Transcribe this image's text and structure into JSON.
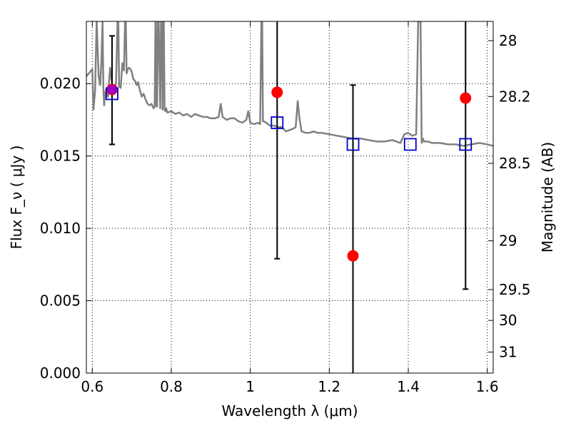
{
  "chart_data": {
    "type": "scatter",
    "xlabel": "Wavelength  λ (μm)",
    "ylabel": "Flux  F_ν  ( μJy )",
    "ylabel_right": "Magnitude (AB)",
    "xlim": [
      0.585,
      1.615
    ],
    "ylim": [
      0.0,
      0.0243
    ],
    "x_ticks": [
      0.6,
      0.8,
      1.0,
      1.2,
      1.4,
      1.6
    ],
    "x_tick_labels": [
      "0.6",
      "0.8",
      "1",
      "1.2",
      "1.4",
      "1.6"
    ],
    "y_ticks": [
      0.0,
      0.005,
      0.01,
      0.015,
      0.02
    ],
    "y_tick_labels": [
      "0.000",
      "0.005",
      "0.010",
      "0.015",
      "0.020"
    ],
    "right_ticks": [
      {
        "label": "28",
        "flux": 0.02297
      },
      {
        "label": "28.2",
        "flux": 0.01911
      },
      {
        "label": "28.5",
        "flux": 0.01449
      },
      {
        "label": "29",
        "flux": 0.00914
      },
      {
        "label": "29.5",
        "flux": 0.00577
      },
      {
        "label": "30",
        "flux": 0.00364
      },
      {
        "label": "31",
        "flux": 0.00145
      }
    ],
    "grid": true,
    "grid_style": "dotted",
    "colors": {
      "model": "#808080",
      "observed": "#ff0000",
      "synthetic": "#0000cc",
      "errorbar": "#000000",
      "overlap": "#9900cc"
    },
    "series": [
      {
        "kind": "line",
        "x": [
          0.585,
          0.6,
          0.603,
          0.607,
          0.611,
          0.616,
          0.62,
          0.623,
          0.626,
          0.628,
          0.63,
          0.632,
          0.635,
          0.64,
          0.645,
          0.65,
          0.655,
          0.66,
          0.664,
          0.666,
          0.668,
          0.672,
          0.676,
          0.68,
          0.683,
          0.685,
          0.687,
          0.69,
          0.693,
          0.697,
          0.7,
          0.704,
          0.708,
          0.712,
          0.716,
          0.72,
          0.725,
          0.73,
          0.735,
          0.74,
          0.745,
          0.75,
          0.755,
          0.758,
          0.76,
          0.761,
          0.762,
          0.764,
          0.766,
          0.768,
          0.772,
          0.774,
          0.775,
          0.776,
          0.778,
          0.779,
          0.781,
          0.783,
          0.785,
          0.787,
          0.789,
          0.79,
          0.8,
          0.81,
          0.82,
          0.83,
          0.84,
          0.85,
          0.86,
          0.87,
          0.88,
          0.89,
          0.9,
          0.91,
          0.92,
          0.925,
          0.93,
          0.94,
          0.95,
          0.96,
          0.97,
          0.98,
          0.99,
          0.995,
          1.0,
          1.01,
          1.02,
          1.025,
          1.028,
          1.03,
          1.032,
          1.034,
          1.04,
          1.05,
          1.06,
          1.07,
          1.08,
          1.09,
          1.1,
          1.11,
          1.115,
          1.12,
          1.125,
          1.13,
          1.14,
          1.15,
          1.16,
          1.17,
          1.18,
          1.2,
          1.22,
          1.24,
          1.26,
          1.28,
          1.3,
          1.32,
          1.34,
          1.36,
          1.38,
          1.39,
          1.4,
          1.41,
          1.42,
          1.425,
          1.428,
          1.431,
          1.434,
          1.437,
          1.44,
          1.45,
          1.46,
          1.48,
          1.5,
          1.52,
          1.54,
          1.56,
          1.58,
          1.6,
          1.615
        ],
        "y": [
          0.0205,
          0.021,
          0.0182,
          0.0195,
          0.0243,
          0.0205,
          0.0199,
          0.0215,
          0.0243,
          0.0198,
          0.0185,
          0.0192,
          0.0196,
          0.0191,
          0.0211,
          0.02,
          0.0196,
          0.02,
          0.0243,
          0.0243,
          0.0198,
          0.0197,
          0.0214,
          0.0209,
          0.0243,
          0.0243,
          0.0207,
          0.021,
          0.0211,
          0.021,
          0.0208,
          0.0203,
          0.0202,
          0.0199,
          0.0201,
          0.0196,
          0.0191,
          0.0193,
          0.0189,
          0.0186,
          0.0185,
          0.0186,
          0.0183,
          0.0184,
          0.0243,
          0.0243,
          0.0185,
          0.0184,
          0.0243,
          0.0243,
          0.0183,
          0.0243,
          0.0243,
          0.0243,
          0.0182,
          0.0243,
          0.0243,
          0.0182,
          0.0181,
          0.0183,
          0.0181,
          0.018,
          0.0181,
          0.0179,
          0.018,
          0.0178,
          0.0179,
          0.0177,
          0.0179,
          0.0178,
          0.0177,
          0.0177,
          0.0176,
          0.0176,
          0.0177,
          0.0186,
          0.0177,
          0.0175,
          0.0176,
          0.0176,
          0.0174,
          0.0173,
          0.0175,
          0.0181,
          0.0173,
          0.0172,
          0.0173,
          0.0172,
          0.0243,
          0.0243,
          0.0174,
          0.0174,
          0.0173,
          0.0171,
          0.0171,
          0.017,
          0.017,
          0.0167,
          0.0168,
          0.0169,
          0.017,
          0.0188,
          0.0175,
          0.0167,
          0.0166,
          0.0166,
          0.0167,
          0.0166,
          0.0166,
          0.0165,
          0.0164,
          0.0163,
          0.0162,
          0.0162,
          0.0161,
          0.016,
          0.016,
          0.0161,
          0.0159,
          0.0165,
          0.0166,
          0.0164,
          0.0165,
          0.0243,
          0.0243,
          0.0243,
          0.0159,
          0.0162,
          0.016,
          0.016,
          0.0159,
          0.0159,
          0.0158,
          0.0158,
          0.0157,
          0.0158,
          0.0159,
          0.0158,
          0.0157
        ]
      },
      {
        "kind": "observed",
        "points": [
          {
            "x": 0.65,
            "y": 0.0196
          },
          {
            "x": 1.068,
            "y": 0.0194
          },
          {
            "x": 1.26,
            "y": 0.0081
          },
          {
            "x": 1.545,
            "y": 0.019
          }
        ]
      },
      {
        "kind": "synthetic",
        "points": [
          {
            "x": 0.65,
            "y": 0.0193
          },
          {
            "x": 1.068,
            "y": 0.0173
          },
          {
            "x": 1.26,
            "y": 0.0158
          },
          {
            "x": 1.405,
            "y": 0.0158
          },
          {
            "x": 1.545,
            "y": 0.0158
          }
        ]
      },
      {
        "kind": "errorbar",
        "points": [
          {
            "x": 0.65,
            "low": 0.0158,
            "high": 0.0233
          },
          {
            "x": 1.068,
            "low": 0.0079,
            "high": 0.0243
          },
          {
            "x": 1.26,
            "low": 0.0,
            "high": 0.0199
          },
          {
            "x": 1.545,
            "low": 0.0058,
            "high": 0.0243
          }
        ]
      }
    ]
  }
}
